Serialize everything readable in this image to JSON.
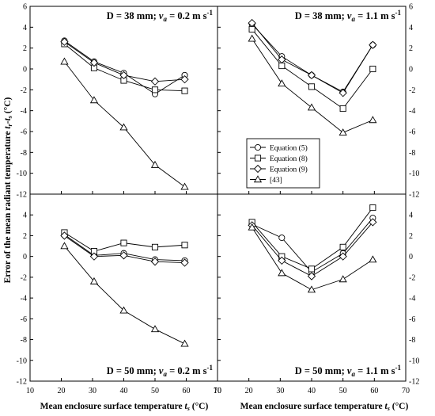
{
  "figure": {
    "ylabel": "Error of the mean radiant temperature t_r-t_s (°C)",
    "ylabel_parts": {
      "main": "Error of the mean radiant temperature ",
      "t1": "t",
      "s1": "r",
      "dash": "-",
      "t2": "t",
      "s2": "s",
      "unit": " (°C)"
    },
    "xlabel_parts": {
      "main": "Mean enclosure surface temperature ",
      "t": "t",
      "s": "s",
      "unit": " (°C)"
    },
    "legend": {
      "entries": [
        {
          "label": "Equation (5)",
          "marker": "circle"
        },
        {
          "label": "Equation (8)",
          "marker": "square"
        },
        {
          "label": "Equation (9)",
          "marker": "diamond"
        },
        {
          "label": "[43]",
          "marker": "triangle"
        }
      ]
    }
  },
  "chart_data": [
    {
      "type": "line",
      "panel": "top-left",
      "title_parts": {
        "pre": "D = 38 mm; ",
        "v": "v",
        "sub": "a",
        "post": " = 0.2 m s",
        "sup": "-1"
      },
      "x": [
        21,
        30.5,
        40,
        50,
        59.5
      ],
      "xlim": [
        10,
        70
      ],
      "ylim": [
        -12,
        6
      ],
      "xticks": [
        10,
        20,
        30,
        40,
        50,
        60,
        70
      ],
      "yticks": [
        -12,
        -10,
        -8,
        -6,
        -4,
        -2,
        0,
        2,
        4,
        6
      ],
      "series": [
        {
          "name": "Equation (5)",
          "marker": "circle",
          "values": [
            2.7,
            0.7,
            -0.4,
            -2.4,
            -0.6
          ]
        },
        {
          "name": "Equation (8)",
          "marker": "square",
          "values": [
            2.4,
            0.1,
            -1.1,
            -2.0,
            -2.1
          ]
        },
        {
          "name": "Equation (9)",
          "marker": "diamond",
          "values": [
            2.6,
            0.6,
            -0.6,
            -1.2,
            -1.0
          ]
        },
        {
          "name": "[43]",
          "marker": "triangle",
          "values": [
            0.7,
            -3.0,
            -5.6,
            -9.2,
            -11.3
          ]
        }
      ]
    },
    {
      "type": "line",
      "panel": "top-right",
      "title_parts": {
        "pre": "D = 38 mm; ",
        "v": "v",
        "sub": "a",
        "post": " = 1.1 m s",
        "sup": "-1"
      },
      "x": [
        21,
        30.5,
        40,
        50,
        59.5
      ],
      "xlim": [
        10,
        70
      ],
      "ylim": [
        -12,
        6
      ],
      "xticks": [
        10,
        20,
        30,
        40,
        50,
        60,
        70
      ],
      "yticks": [
        -12,
        -10,
        -8,
        -6,
        -4,
        -2,
        0,
        2,
        4,
        6
      ],
      "series": [
        {
          "name": "Equation (5)",
          "marker": "circle",
          "values": [
            4.3,
            1.2,
            -0.6,
            -2.2,
            2.3
          ]
        },
        {
          "name": "Equation (8)",
          "marker": "square",
          "values": [
            3.8,
            0.3,
            -1.7,
            -3.8,
            0.0
          ]
        },
        {
          "name": "Equation (9)",
          "marker": "diamond",
          "values": [
            4.4,
            0.9,
            -0.6,
            -2.3,
            2.3
          ]
        },
        {
          "name": "[43]",
          "marker": "triangle",
          "values": [
            2.9,
            -1.4,
            -3.7,
            -6.1,
            -4.9
          ]
        }
      ]
    },
    {
      "type": "line",
      "panel": "bottom-left",
      "title_parts": {
        "pre": "D = 50 mm; ",
        "v": "v",
        "sub": "a",
        "post": " = 0.2 m s",
        "sup": "-1"
      },
      "x": [
        21,
        30.5,
        40,
        50,
        59.5
      ],
      "xlim": [
        10,
        70
      ],
      "ylim": [
        -12,
        6
      ],
      "xticks": [
        10,
        20,
        30,
        40,
        50,
        60,
        70
      ],
      "yticks": [
        -12,
        -10,
        -8,
        -6,
        -4,
        -2,
        0,
        2,
        4,
        6
      ],
      "series": [
        {
          "name": "Equation (5)",
          "marker": "circle",
          "values": [
            2.1,
            0.1,
            0.3,
            -0.3,
            -0.4
          ]
        },
        {
          "name": "Equation (8)",
          "marker": "square",
          "values": [
            2.3,
            0.5,
            1.3,
            0.9,
            1.1
          ]
        },
        {
          "name": "Equation (9)",
          "marker": "diamond",
          "values": [
            2.0,
            0.0,
            0.1,
            -0.5,
            -0.6
          ]
        },
        {
          "name": "[43]",
          "marker": "triangle",
          "values": [
            1.0,
            -2.4,
            -5.2,
            -7.0,
            -8.4
          ]
        }
      ]
    },
    {
      "type": "line",
      "panel": "bottom-right",
      "title_parts": {
        "pre": "D = 50 mm; ",
        "v": "v",
        "sub": "a",
        "post": " = 1.1 m s",
        "sup": "-1"
      },
      "x": [
        21,
        30.5,
        40,
        50,
        59.5
      ],
      "xlim": [
        10,
        70
      ],
      "ylim": [
        -12,
        6
      ],
      "xticks": [
        10,
        20,
        30,
        40,
        50,
        60,
        70
      ],
      "yticks": [
        -12,
        -10,
        -8,
        -6,
        -4,
        -2,
        0,
        2,
        4,
        6
      ],
      "series": [
        {
          "name": "Equation (5)",
          "marker": "circle",
          "values": [
            3.1,
            1.8,
            -1.5,
            0.3,
            3.7
          ]
        },
        {
          "name": "Equation (8)",
          "marker": "square",
          "values": [
            3.3,
            0.0,
            -1.2,
            0.9,
            4.7
          ]
        },
        {
          "name": "Equation (9)",
          "marker": "diamond",
          "values": [
            3.0,
            -0.4,
            -1.9,
            0.0,
            3.3
          ]
        },
        {
          "name": "[43]",
          "marker": "triangle",
          "values": [
            2.8,
            -1.6,
            -3.2,
            -2.2,
            -0.3
          ]
        }
      ]
    }
  ]
}
